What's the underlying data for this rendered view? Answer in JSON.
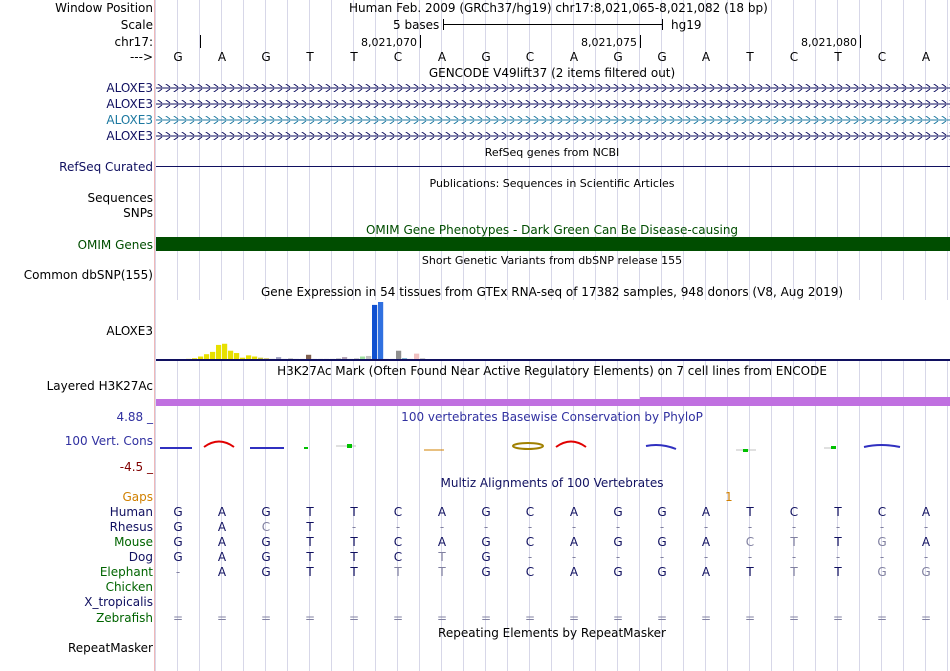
{
  "header": {
    "window_position_label": "Window Position",
    "window_position_text": "Human Feb. 2009 (GRCh37/hg19)   chr17:8,021,065-8,021,082 (18 bp)",
    "scale_label": "Scale",
    "scale_text": "5 bases",
    "assembly": "hg19",
    "chrom_label": "chr17:",
    "positions": [
      "8,021,070",
      "8,021,075",
      "8,021,080"
    ],
    "strand_label": "--->",
    "sequence": [
      "G",
      "A",
      "G",
      "T",
      "T",
      "C",
      "A",
      "G",
      "C",
      "A",
      "G",
      "G",
      "A",
      "T",
      "C",
      "T",
      "C",
      "A"
    ]
  },
  "tracks": {
    "gencode_title": "GENCODE V49lift37 (2 items filtered out)",
    "gencode_genes": [
      "ALOXE3",
      "ALOXE3",
      "ALOXE3",
      "ALOXE3"
    ],
    "refseq_label": "RefSeq Curated",
    "refseq_title": "RefSeq genes from NCBI",
    "publications_title": "Publications: Sequences in Scientific Articles",
    "sequences_label": "Sequences",
    "snps_label": "SNPs",
    "omim_label": "OMIM Genes",
    "omim_title": "OMIM Gene Phenotypes - Dark Green Can Be Disease-causing",
    "dbsnp_title": "Short Genetic Variants from dbSNP release 155",
    "dbsnp_label": "Common dbSNP(155)",
    "gtex_title": "Gene Expression in 54 tissues from GTEx RNA-seq of 17382 samples, 948 donors (V8, Aug 2019)",
    "gtex_gene": "ALOXE3",
    "h3k27ac_label": "Layered H3K27Ac",
    "h3k27ac_title": "H3K27Ac Mark (Often Found Near Active Regulatory Elements) on 7 cell lines from ENCODE",
    "cons_max": "4.88 _",
    "cons_label": "100 Vert. Cons",
    "cons_min": "-4.5 _",
    "cons_title": "100 vertebrates Basewise Conservation by PhyloP",
    "multiz_title": "Multiz Alignments of 100 Vertebrates",
    "gaps_label": "Gaps",
    "gaps_value": "1",
    "repeatmasker_title": "Repeating Elements by RepeatMasker",
    "repeatmasker_label": "RepeatMasker"
  },
  "alignment": [
    {
      "species": "Human",
      "bases": [
        "G",
        "A",
        "G",
        "T",
        "T",
        "C",
        "A",
        "G",
        "C",
        "A",
        "G",
        "G",
        "A",
        "T",
        "C",
        "T",
        "C",
        "A"
      ]
    },
    {
      "species": "Rhesus",
      "bases": [
        "G",
        "A",
        "C",
        "T",
        "-",
        "-",
        "-",
        "-",
        "-",
        "-",
        "-",
        "-",
        "-",
        "-",
        "-",
        "-",
        "-",
        "-"
      ]
    },
    {
      "species": "Mouse",
      "bases": [
        "G",
        "A",
        "G",
        "T",
        "T",
        "C",
        "A",
        "G",
        "C",
        "A",
        "G",
        "G",
        "A",
        "C",
        "T",
        "T",
        "G",
        "A"
      ]
    },
    {
      "species": "Dog",
      "bases": [
        "G",
        "A",
        "G",
        "T",
        "T",
        "C",
        "T",
        "G",
        "-",
        "-",
        "-",
        "-",
        "-",
        "-",
        "-",
        "-",
        "-",
        "-"
      ]
    },
    {
      "species": "Elephant",
      "bases": [
        "-",
        "A",
        "G",
        "T",
        "T",
        "T",
        "T",
        "G",
        "C",
        "A",
        "G",
        "G",
        "A",
        "T",
        "T",
        "T",
        "G",
        "G"
      ]
    },
    {
      "species": "Chicken",
      "bases": [
        "",
        "",
        "",
        "",
        "",
        "",
        "",
        "",
        "",
        "",
        "",
        "",
        "",
        "",
        "",
        "",
        "",
        ""
      ]
    },
    {
      "species": "X_tropicalis",
      "bases": [
        "",
        "",
        "",
        "",
        "",
        "",
        "",
        "",
        "",
        "",
        "",
        "",
        "",
        "",
        "",
        "",
        "",
        ""
      ]
    },
    {
      "species": "Zebrafish",
      "bases": [
        "=",
        "=",
        "=",
        "=",
        "=",
        "=",
        "=",
        "=",
        "=",
        "=",
        "=",
        "=",
        "=",
        "=",
        "=",
        "=",
        "=",
        "="
      ]
    }
  ],
  "colors": {
    "label_navy": "#101060",
    "aloxe3_highlight": "#1c78a0",
    "omim_green": "#004d00",
    "h3k27ac_purple": "#c070e0",
    "cons_blue": "#3030a0",
    "gaps_orange": "#d08000",
    "elephant_green": "#006400",
    "mismatch_gray": "#8080a0"
  },
  "gtex_bars": [
    {
      "value": 0.02,
      "color": "#e8e000"
    },
    {
      "value": 0.03,
      "color": "#e8e000"
    },
    {
      "value": 0.06,
      "color": "#e8e000"
    },
    {
      "value": 0.1,
      "color": "#e8e000"
    },
    {
      "value": 0.14,
      "color": "#e8e000"
    },
    {
      "value": 0.26,
      "color": "#e8e000"
    },
    {
      "value": 0.28,
      "color": "#e8e000"
    },
    {
      "value": 0.16,
      "color": "#e8e000"
    },
    {
      "value": 0.12,
      "color": "#e8e000"
    },
    {
      "value": 0.04,
      "color": "#e8e000"
    },
    {
      "value": 0.08,
      "color": "#e8e000"
    },
    {
      "value": 0.06,
      "color": "#e8e000"
    },
    {
      "value": 0.04,
      "color": "#c8c840"
    },
    {
      "value": 0.03,
      "color": "#d0c060"
    },
    {
      "value": 0.02,
      "color": "#b0b0b0"
    },
    {
      "value": 0.05,
      "color": "#a0a0c0"
    },
    {
      "value": 0.02,
      "color": "#c0c0c0"
    },
    {
      "value": 0.03,
      "color": "#c0c0c0"
    },
    {
      "value": 0.02,
      "color": "#c0c0c0"
    },
    {
      "value": 0.02,
      "color": "#c0c0c0"
    },
    {
      "value": 0.09,
      "color": "#806050"
    },
    {
      "value": 0.02,
      "color": "#c0c0c0"
    },
    {
      "value": 0.02,
      "color": "#c0c0c0"
    },
    {
      "value": 0.02,
      "color": "#c0c0c0"
    },
    {
      "value": 0.02,
      "color": "#c0c0c0"
    },
    {
      "value": 0.03,
      "color": "#c0c0c0"
    },
    {
      "value": 0.05,
      "color": "#b0a0b0"
    },
    {
      "value": 0.02,
      "color": "#c0c0c0"
    },
    {
      "value": 0.03,
      "color": "#c0c0c0"
    },
    {
      "value": 0.06,
      "color": "#a0e0a0"
    },
    {
      "value": 0.07,
      "color": "#c0c0c0"
    },
    {
      "value": 0.95,
      "color": "#1050d0"
    },
    {
      "value": 1.0,
      "color": "#3070e0"
    },
    {
      "value": 0.02,
      "color": "#c0c0c0"
    },
    {
      "value": 0.02,
      "color": "#c0c0c0"
    },
    {
      "value": 0.16,
      "color": "#909090"
    },
    {
      "value": 0.03,
      "color": "#60a0c0"
    },
    {
      "value": 0.02,
      "color": "#c0c0c0"
    },
    {
      "value": 0.11,
      "color": "#f0c0c0"
    },
    {
      "value": 0.03,
      "color": "#c0c0c0"
    }
  ]
}
